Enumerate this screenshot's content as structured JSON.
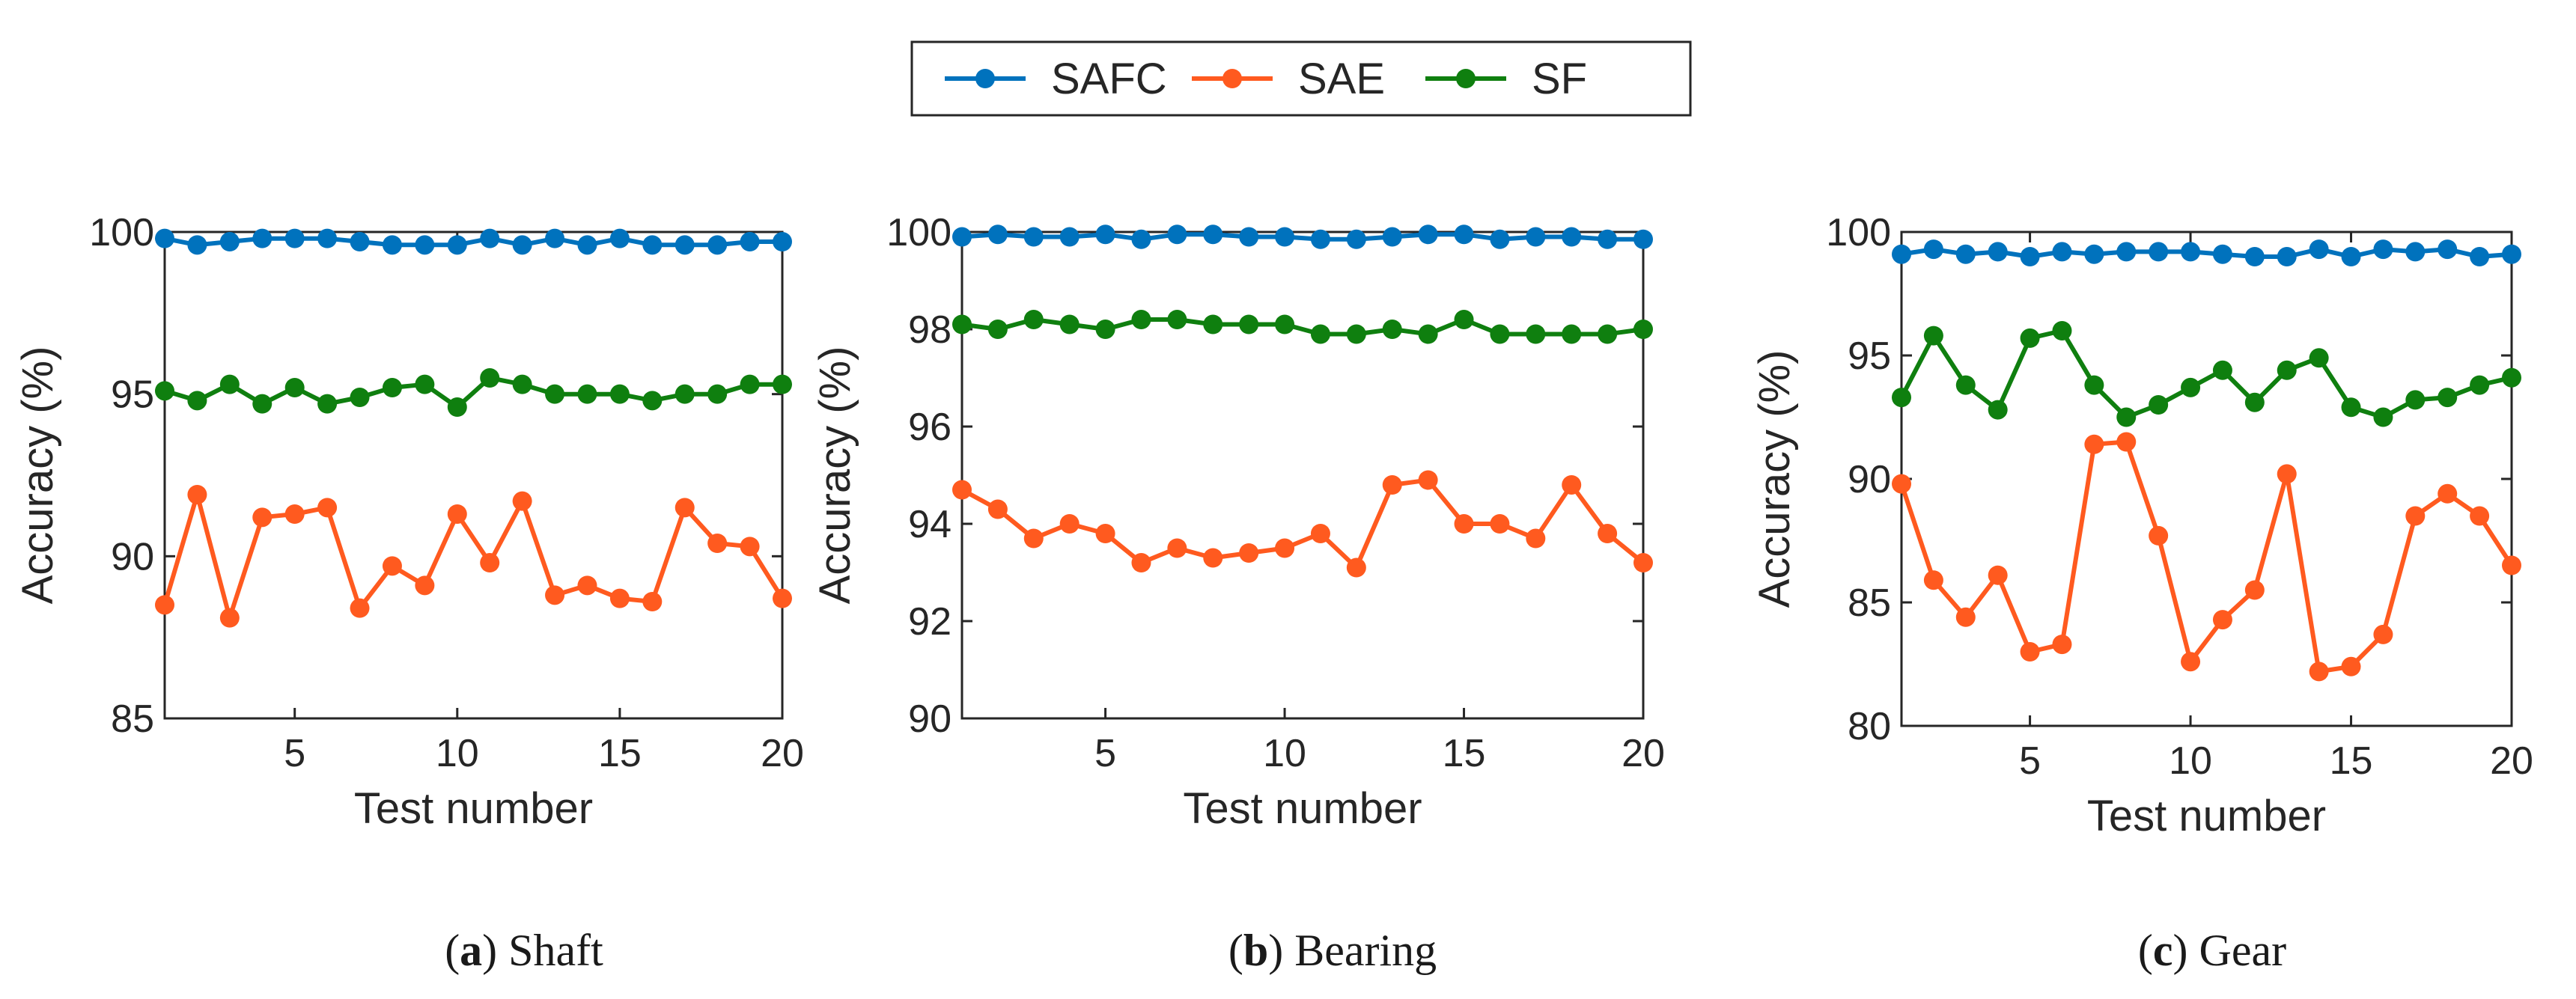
{
  "legend": {
    "placement": "top-center",
    "items": [
      {
        "name": "SAFC",
        "color": "#0072BD"
      },
      {
        "name": "SAE",
        "color": "#FF5A1F"
      },
      {
        "name": "SF",
        "color": "#0F7F0F"
      }
    ]
  },
  "chart_data": [
    {
      "type": "line",
      "caption_letter": "(a)",
      "caption_text": " Shaft",
      "xlabel": "Test number",
      "ylabel": "Accuracy (%)",
      "xlim": [
        1,
        20
      ],
      "ylim": [
        85,
        100
      ],
      "xticks": [
        5,
        10,
        15,
        20
      ],
      "yticks": [
        85,
        90,
        95,
        100
      ],
      "grid": false,
      "x": [
        1,
        2,
        3,
        4,
        5,
        6,
        7,
        8,
        9,
        10,
        11,
        12,
        13,
        14,
        15,
        16,
        17,
        18,
        19,
        20
      ],
      "series": [
        {
          "name": "SAFC",
          "values": [
            99.8,
            99.6,
            99.7,
            99.8,
            99.8,
            99.8,
            99.7,
            99.6,
            99.6,
            99.6,
            99.8,
            99.6,
            99.8,
            99.6,
            99.8,
            99.6,
            99.6,
            99.6,
            99.7,
            99.7
          ]
        },
        {
          "name": "SAE",
          "values": [
            88.5,
            91.9,
            88.1,
            91.2,
            91.3,
            91.5,
            88.4,
            89.7,
            89.1,
            91.3,
            89.8,
            91.7,
            88.8,
            89.1,
            88.7,
            88.6,
            91.5,
            90.4,
            90.3,
            88.7
          ]
        },
        {
          "name": "SF",
          "values": [
            95.1,
            94.8,
            95.3,
            94.7,
            95.2,
            94.7,
            94.9,
            95.2,
            95.3,
            94.6,
            95.5,
            95.3,
            95.0,
            95.0,
            95.0,
            94.8,
            95.0,
            95.0,
            95.3,
            95.3
          ]
        }
      ]
    },
    {
      "type": "line",
      "caption_letter": "(b)",
      "caption_text": " Bearing",
      "xlabel": "Test number",
      "ylabel": "Accuracy (%)",
      "xlim": [
        1,
        20
      ],
      "ylim": [
        90,
        100
      ],
      "xticks": [
        5,
        10,
        15,
        20
      ],
      "yticks": [
        90,
        92,
        94,
        96,
        98,
        100
      ],
      "grid": false,
      "x": [
        1,
        2,
        3,
        4,
        5,
        6,
        7,
        8,
        9,
        10,
        11,
        12,
        13,
        14,
        15,
        16,
        17,
        18,
        19,
        20
      ],
      "series": [
        {
          "name": "SAFC",
          "values": [
            99.9,
            99.95,
            99.9,
            99.9,
            99.95,
            99.85,
            99.95,
            99.95,
            99.9,
            99.9,
            99.85,
            99.85,
            99.9,
            99.95,
            99.95,
            99.85,
            99.9,
            99.9,
            99.85,
            99.85
          ]
        },
        {
          "name": "SAE",
          "values": [
            94.7,
            94.3,
            93.7,
            94.0,
            93.8,
            93.2,
            93.5,
            93.3,
            93.4,
            93.5,
            93.8,
            93.1,
            94.8,
            94.9,
            94.0,
            94.0,
            93.7,
            94.8,
            93.8,
            93.2
          ]
        },
        {
          "name": "SF",
          "values": [
            98.1,
            98.0,
            98.2,
            98.1,
            98.0,
            98.2,
            98.2,
            98.1,
            98.1,
            98.1,
            97.9,
            97.9,
            98.0,
            97.9,
            98.2,
            97.9,
            97.9,
            97.9,
            97.9,
            98.0
          ]
        }
      ]
    },
    {
      "type": "line",
      "caption_letter": "(c)",
      "caption_text": " Gear",
      "xlabel": "Test number",
      "ylabel": "Accuracy (%)",
      "xlim": [
        1,
        20
      ],
      "ylim": [
        80,
        100
      ],
      "xticks": [
        5,
        10,
        15,
        20
      ],
      "yticks": [
        80,
        85,
        90,
        95,
        100
      ],
      "grid": false,
      "x": [
        1,
        2,
        3,
        4,
        5,
        6,
        7,
        8,
        9,
        10,
        11,
        12,
        13,
        14,
        15,
        16,
        17,
        18,
        19,
        20
      ],
      "series": [
        {
          "name": "SAFC",
          "values": [
            99.1,
            99.3,
            99.1,
            99.2,
            99.0,
            99.2,
            99.1,
            99.2,
            99.2,
            99.2,
            99.1,
            99.0,
            99.0,
            99.3,
            99.0,
            99.3,
            99.2,
            99.3,
            99.0,
            99.1
          ]
        },
        {
          "name": "SAE",
          "values": [
            89.8,
            85.9,
            84.4,
            86.1,
            83.0,
            83.3,
            91.4,
            91.5,
            87.7,
            82.6,
            84.3,
            85.5,
            90.2,
            82.2,
            82.4,
            83.7,
            88.5,
            89.4,
            88.5,
            86.5
          ]
        },
        {
          "name": "SF",
          "values": [
            93.3,
            95.8,
            93.8,
            92.8,
            95.7,
            96.0,
            93.8,
            92.5,
            93.0,
            93.7,
            94.4,
            93.1,
            94.4,
            94.9,
            92.9,
            92.5,
            93.2,
            93.3,
            93.8,
            94.1
          ]
        }
      ]
    }
  ]
}
